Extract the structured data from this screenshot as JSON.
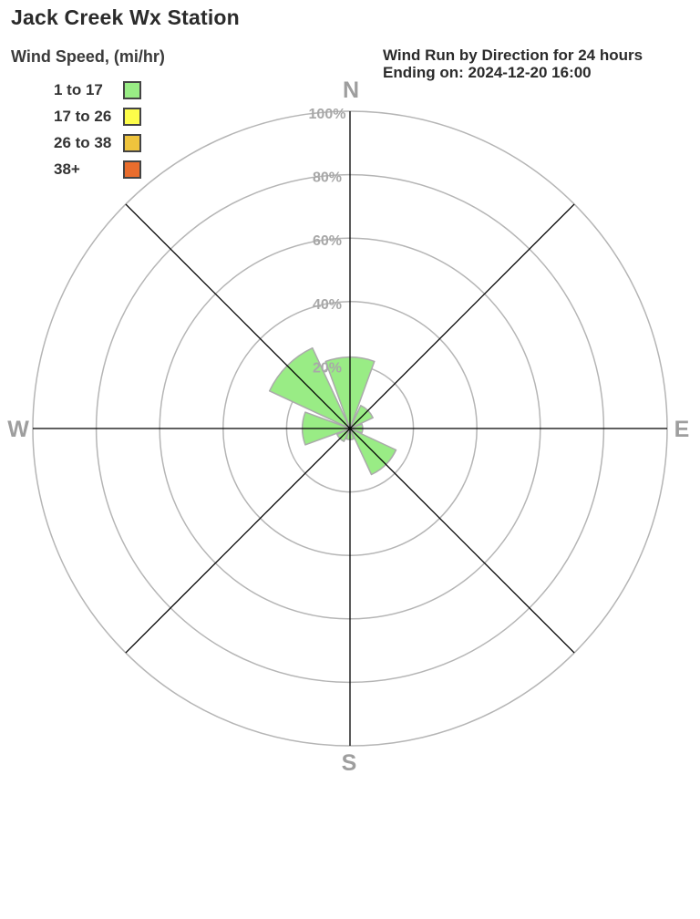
{
  "header": {
    "title": "Jack Creek Wx Station",
    "subtitle_line1": "Wind Run by Direction for 24 hours",
    "subtitle_line2": "Ending on: 2024-12-20 16:00"
  },
  "legend": {
    "title": "Wind Speed, (mi/hr)",
    "items": [
      {
        "label": "1 to 17",
        "color": "#99EC85"
      },
      {
        "label": "17 to 26",
        "color": "#FDFD4A"
      },
      {
        "label": "26 to 38",
        "color": "#EFC43D"
      },
      {
        "label": "38+",
        "color": "#E96D2D"
      }
    ]
  },
  "chart_data": {
    "type": "wind-rose-polar-bar",
    "title": "Wind Run by Direction for 24 hours",
    "subtitle": "Ending on: 2024-12-20 16:00",
    "categories": [
      "N",
      "NE",
      "E",
      "SE",
      "S",
      "SW",
      "W",
      "NW"
    ],
    "series": [
      {
        "name": "1 to 17",
        "color": "#99EC85",
        "values": [
          22.5,
          8,
          4,
          16,
          3.5,
          4.5,
          15,
          28
        ]
      }
    ],
    "units": "% of wind run",
    "rlim": [
      0,
      100
    ],
    "ring_values": [
      20,
      40,
      60,
      80,
      100
    ],
    "ring_ticks": [
      "20%",
      "40%",
      "60%",
      "80%",
      "100%"
    ],
    "compass_labels": {
      "n": "N",
      "e": "E",
      "s": "S",
      "w": "W"
    },
    "petal_width_deg": 40,
    "grid_on": true,
    "colors": {
      "ring": "#b5b5b5",
      "spoke": "#000000",
      "petal_outline": "#aaaaaa",
      "tick_label": "#a8a8a8",
      "compass_label": "#9e9e9e"
    }
  }
}
